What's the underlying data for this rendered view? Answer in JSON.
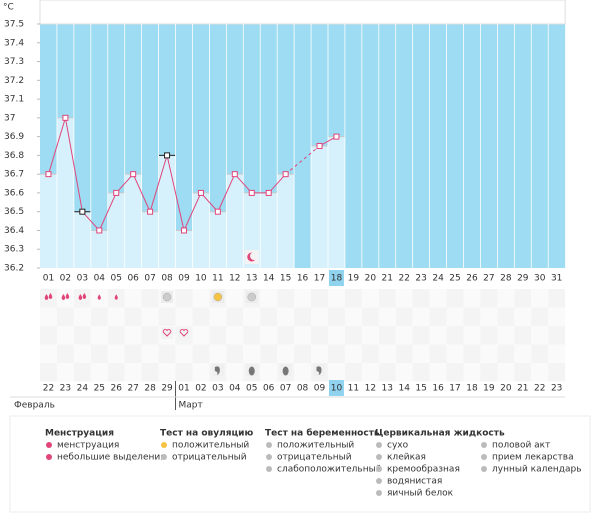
{
  "chart_data": {
    "type": "line",
    "unit": "°C",
    "categories": [
      "01",
      "02",
      "03",
      "04",
      "05",
      "06",
      "07",
      "08",
      "09",
      "10",
      "11",
      "12",
      "13",
      "14",
      "15",
      "16",
      "17",
      "18",
      "19",
      "20",
      "21",
      "22",
      "23",
      "24",
      "25",
      "26",
      "27",
      "28",
      "29",
      "30",
      "31"
    ],
    "values": [
      36.7,
      37.0,
      36.5,
      36.4,
      36.6,
      36.7,
      36.5,
      36.8,
      36.4,
      36.6,
      36.5,
      36.7,
      36.6,
      36.6,
      36.7,
      null,
      36.85,
      36.9,
      null,
      null,
      null,
      null,
      null,
      null,
      null,
      null,
      null,
      null,
      null,
      null,
      null
    ],
    "color": "#e0457b",
    "ylim": [
      36.2,
      37.5
    ],
    "yticks": [
      36.2,
      36.3,
      36.4,
      36.5,
      36.6,
      36.7,
      36.8,
      36.9,
      37,
      37.1,
      37.2,
      37.3,
      37.4,
      37.5
    ],
    "dates": [
      "22",
      "23",
      "24",
      "25",
      "26",
      "27",
      "28",
      "29",
      "01",
      "02",
      "03",
      "04",
      "05",
      "06",
      "07",
      "08",
      "09",
      "10",
      "11",
      "12",
      "13",
      "14",
      "15",
      "16",
      "17",
      "18",
      "19",
      "20",
      "21",
      "22",
      "23"
    ],
    "months": [
      "Февраль",
      "Март"
    ]
  },
  "legend": [
    {
      "title": "Менструация",
      "items": [
        "менструация",
        "небольшие выделения"
      ]
    },
    {
      "title": "Тест на овуляцию",
      "items": [
        "положительный",
        "отрицательный"
      ]
    },
    {
      "title": "Тест на беременность",
      "items": [
        "положительный",
        "отрицательный",
        "слабоположительный"
      ]
    },
    {
      "title": "Цервикальная жидкость",
      "items": [
        "сухо",
        "клейкая",
        "кремообразная",
        "водянистая",
        "яичный белок"
      ]
    },
    {
      "items": [
        "половой акт",
        "прием лекарства",
        "лунный календарь"
      ]
    }
  ]
}
